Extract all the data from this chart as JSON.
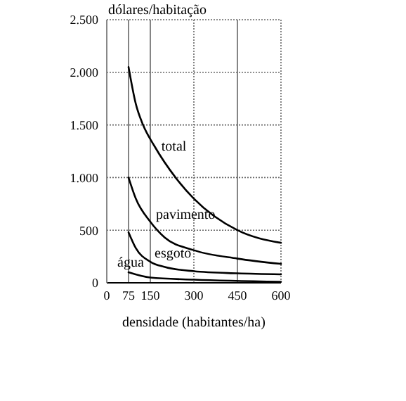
{
  "chart_data": {
    "type": "line",
    "ylabel": "dólares/habitação",
    "xlabel": "densidade (habitantes/ha)",
    "xlim": [
      0,
      600
    ],
    "xticks": [
      0,
      75,
      150,
      300,
      450,
      600
    ],
    "ylim": [
      0,
      2500
    ],
    "yticks": [
      0,
      500,
      {
        "value": 1000,
        "label": "1.000"
      },
      {
        "value": 1500,
        "label": "1.500"
      },
      {
        "value": 2000,
        "label": "2.000"
      },
      {
        "value": 2500,
        "label": "2.500"
      }
    ],
    "grid": true,
    "legend": false,
    "marker": "none",
    "line_style": "solid",
    "series": [
      {
        "name": "total",
        "color": "#000000",
        "x": [
          75,
          100,
          125,
          164,
          237,
          300,
          450,
          600
        ],
        "values": [
          2050,
          1700,
          1500,
          1300,
          1000,
          800,
          500,
          380
        ]
      },
      {
        "name": "pavimento",
        "color": "#000000",
        "x": [
          75,
          100,
          150,
          200,
          300,
          450,
          600
        ],
        "values": [
          1000,
          800,
          580,
          430,
          310,
          230,
          180
        ]
      },
      {
        "name": "esgoto",
        "color": "#000000",
        "x": [
          75,
          100,
          150,
          200,
          300,
          450,
          600
        ],
        "values": [
          480,
          330,
          200,
          150,
          110,
          90,
          80
        ]
      },
      {
        "name": "água",
        "color": "#000000",
        "x": [
          75,
          150,
          300,
          600
        ],
        "values": [
          100,
          50,
          30,
          10
        ]
      }
    ]
  }
}
